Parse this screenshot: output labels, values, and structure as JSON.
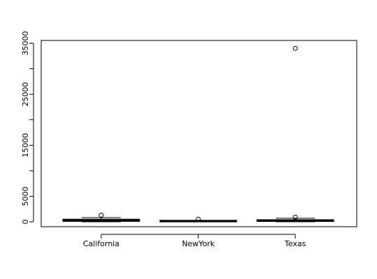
{
  "chart_data": {
    "type": "boxplot",
    "title": "",
    "xlabel": "",
    "ylabel": "",
    "ylim": [
      -1200,
      35800
    ],
    "y_ticks": [
      0,
      5000,
      15000,
      25000,
      35000
    ],
    "categories": [
      "California",
      "NewYork",
      "Texas"
    ],
    "boxes": [
      {
        "category": "California",
        "min": 0,
        "q1": 80,
        "median": 250,
        "q3": 520,
        "max": 820,
        "outliers": [
          1300
        ],
        "fill": "#b22222"
      },
      {
        "category": "NewYork",
        "min": 0,
        "q1": 30,
        "median": 90,
        "q3": 200,
        "max": 250,
        "outliers": [
          520
        ],
        "fill": "#ffffff"
      },
      {
        "category": "Texas",
        "min": 0,
        "q1": 60,
        "median": 200,
        "q3": 420,
        "max": 700,
        "outliers": [
          900,
          34000
        ],
        "fill": "#ffffff"
      }
    ]
  }
}
